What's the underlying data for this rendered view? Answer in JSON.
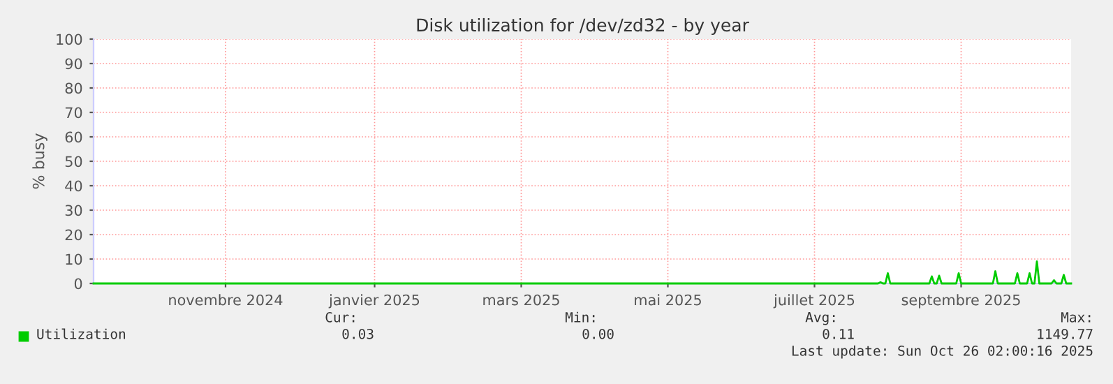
{
  "chart_data": {
    "type": "line",
    "title": "Disk utilization for /dev/zd32 - by year",
    "ylabel": "% busy",
    "series": [
      {
        "name": "Utilization",
        "color": "#00cc00",
        "x": [
          "2024-09-21",
          "2025-08-08",
          "2025-08-09",
          "2025-08-10",
          "2025-08-11",
          "2025-08-12",
          "2025-08-13",
          "2025-08-29",
          "2025-08-30",
          "2025-08-31",
          "2025-09-01",
          "2025-09-02",
          "2025-09-03",
          "2025-09-09",
          "2025-09-10",
          "2025-09-11",
          "2025-09-24",
          "2025-09-25",
          "2025-09-26",
          "2025-10-03",
          "2025-10-04",
          "2025-10-05",
          "2025-10-08",
          "2025-10-09",
          "2025-10-10",
          "2025-10-11",
          "2025-10-12",
          "2025-10-13",
          "2025-10-18",
          "2025-10-19",
          "2025-10-20",
          "2025-10-22",
          "2025-10-23",
          "2025-10-24",
          "2025-10-26"
        ],
        "values": [
          0,
          0,
          0.5,
          0,
          0,
          4.2,
          0,
          0,
          2.9,
          0,
          0,
          3.2,
          0,
          0,
          4.2,
          0,
          0,
          5,
          0,
          0,
          4.2,
          0,
          0,
          4.2,
          0,
          0,
          9,
          0,
          0,
          1.3,
          0,
          0,
          3.5,
          0,
          0
        ]
      }
    ],
    "xlim": [
      "2024-09-21",
      "2025-10-26"
    ],
    "xticks": [
      {
        "value": "2024-11-14",
        "label": "novembre 2024"
      },
      {
        "value": "2025-01-14",
        "label": "janvier 2025"
      },
      {
        "value": "2025-03-15",
        "label": "mars 2025"
      },
      {
        "value": "2025-05-14",
        "label": "mai 2025"
      },
      {
        "value": "2025-07-13",
        "label": "juillet 2025"
      },
      {
        "value": "2025-09-11",
        "label": "septembre 2025"
      }
    ],
    "ylim": [
      0,
      100
    ],
    "yticks": [
      0,
      10,
      20,
      30,
      40,
      50,
      60,
      70,
      80,
      90,
      100
    ],
    "grid": true,
    "legend": "bottom",
    "annotations": [
      "Cur:",
      "Min:",
      "Avg:",
      "Max:",
      "0.03",
      "0.00",
      "0.11",
      "1149.77",
      "Last update: Sun Oct 26 02:00:16 2025"
    ]
  }
}
